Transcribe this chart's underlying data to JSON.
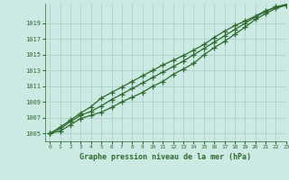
{
  "title": "Graphe pression niveau de la mer (hPa)",
  "background_color": "#cce9e3",
  "grid_color": "#b0d4ce",
  "line_color": "#2d6b2d",
  "xlim": [
    -0.5,
    23
  ],
  "ylim": [
    1004.0,
    1021.5
  ],
  "yticks": [
    1005,
    1007,
    1009,
    1011,
    1013,
    1015,
    1017,
    1019
  ],
  "xticks": [
    0,
    1,
    2,
    3,
    4,
    5,
    6,
    7,
    8,
    9,
    10,
    11,
    12,
    13,
    14,
    15,
    16,
    17,
    18,
    19,
    20,
    21,
    22,
    23
  ],
  "series": [
    [
      1005.0,
      1005.3,
      1006.1,
      1006.9,
      1007.3,
      1007.7,
      1008.3,
      1009.0,
      1009.6,
      1010.2,
      1011.0,
      1011.6,
      1012.5,
      1013.2,
      1013.9,
      1015.0,
      1015.9,
      1016.7,
      1017.6,
      1018.5,
      1019.5,
      1020.2,
      1020.9,
      1021.3
    ],
    [
      1005.0,
      1005.6,
      1006.5,
      1007.3,
      1007.8,
      1008.5,
      1009.3,
      1010.0,
      1010.7,
      1011.4,
      1012.1,
      1012.8,
      1013.5,
      1014.2,
      1015.0,
      1015.8,
      1016.6,
      1017.4,
      1018.2,
      1019.0,
      1019.8,
      1020.5,
      1021.1,
      1021.4
    ],
    [
      1005.0,
      1005.8,
      1006.7,
      1007.6,
      1008.4,
      1009.5,
      1010.2,
      1010.9,
      1011.6,
      1012.3,
      1013.0,
      1013.7,
      1014.3,
      1014.9,
      1015.6,
      1016.3,
      1017.2,
      1018.0,
      1018.7,
      1019.3,
      1019.9,
      1020.6,
      1021.0,
      1021.3
    ]
  ]
}
